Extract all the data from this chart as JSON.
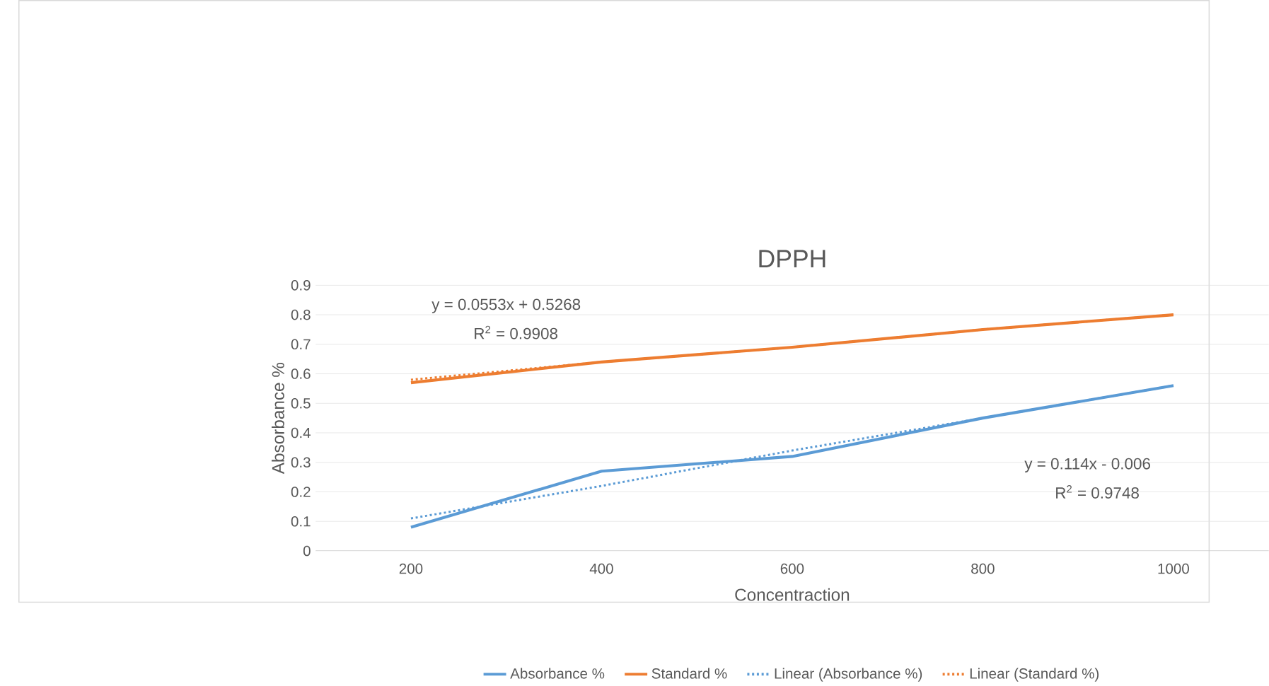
{
  "chart_data": {
    "type": "line",
    "title": "DPPH",
    "xlabel": "Concentraction",
    "ylabel": "Absorbance %",
    "categories": [
      "200",
      "400",
      "600",
      "800",
      "1000"
    ],
    "series": [
      {
        "name": "Absorbance %",
        "color": "#5b9bd5",
        "values": [
          0.08,
          0.27,
          0.32,
          0.45,
          0.56
        ]
      },
      {
        "name": "Standard %",
        "color": "#ed7d31",
        "values": [
          0.57,
          0.64,
          0.69,
          0.75,
          0.8
        ]
      },
      {
        "name": "Linear (Absorbance %)",
        "color": "#5b9bd5",
        "line_style": "dotted",
        "values": [
          0.11,
          0.22,
          0.34,
          0.45,
          0.56
        ]
      },
      {
        "name": "Linear (Standard %)",
        "color": "#ed7d31",
        "line_style": "dotted",
        "values": [
          0.58,
          0.64,
          0.69,
          0.75,
          0.8
        ]
      }
    ],
    "ylim": [
      0,
      0.9
    ],
    "yticks": [
      0,
      0.1,
      0.2,
      0.3,
      0.4,
      0.5,
      0.6,
      0.7,
      0.8,
      0.9
    ],
    "grid": "y",
    "legend": "bottom",
    "annotations": [
      "y = 0.0553x + 0.5268",
      "R$^{2}$ = 0.9908",
      "y = 0.114x - 0.006",
      "R$^{2}$ = 0.9748"
    ]
  }
}
